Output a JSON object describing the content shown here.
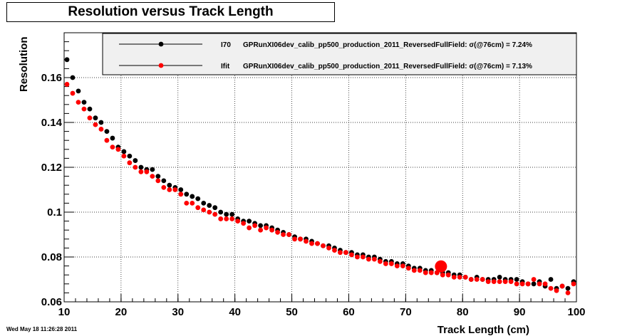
{
  "chart_data": {
    "type": "scatter",
    "title": "Resolution versus Track Length",
    "xlabel": "Track Length (cm)",
    "ylabel": "Resolution",
    "xlim": [
      10,
      100
    ],
    "ylim": [
      0.06,
      0.18
    ],
    "x_ticks": [
      "10",
      "20",
      "30",
      "40",
      "50",
      "60",
      "70",
      "80",
      "90",
      "100"
    ],
    "y_ticks": [
      "0.06",
      "0.08",
      "0.1",
      "0.12",
      "0.14",
      "0.16"
    ],
    "grid": true,
    "legend_position": "top-right",
    "timestamp": "Wed May 18 11:26:28 2011",
    "highlight_point": {
      "x": 76.2,
      "y": 0.0758,
      "color": "#ff0000"
    },
    "series": [
      {
        "name": "I70",
        "legend_text": "GPRunXI06dev_calib_pp500_production_2011_ReversedFullField: σ(@76cm) =  7.24%",
        "color": "#000000",
        "x": [
          10.5,
          11.5,
          12.5,
          13.5,
          14.5,
          15.5,
          16.5,
          17.5,
          18.5,
          19.5,
          20.5,
          21.5,
          22.5,
          23.5,
          24.5,
          25.5,
          26.5,
          27.5,
          28.5,
          29.5,
          30.5,
          31.5,
          32.5,
          33.5,
          34.5,
          35.5,
          36.5,
          37.5,
          38.5,
          39.5,
          40.5,
          41.5,
          42.5,
          43.5,
          44.5,
          45.5,
          46.5,
          47.5,
          48.5,
          49.5,
          50.5,
          51.5,
          52.5,
          53.5,
          54.5,
          55.5,
          56.5,
          57.5,
          58.5,
          59.5,
          60.5,
          61.5,
          62.5,
          63.5,
          64.5,
          65.5,
          66.5,
          67.5,
          68.5,
          69.5,
          70.5,
          71.5,
          72.5,
          73.5,
          74.5,
          75.5,
          76.5,
          77.5,
          78.5,
          79.5,
          80.5,
          81.5,
          82.5,
          83.5,
          84.5,
          85.5,
          86.5,
          87.5,
          88.5,
          89.5,
          90.5,
          91.5,
          92.5,
          93.5,
          94.5,
          95.5,
          96.5,
          97.5,
          98.5,
          99.5
        ],
        "y": [
          0.168,
          0.16,
          0.154,
          0.149,
          0.146,
          0.142,
          0.14,
          0.136,
          0.133,
          0.129,
          0.127,
          0.125,
          0.123,
          0.12,
          0.119,
          0.119,
          0.116,
          0.114,
          0.112,
          0.111,
          0.11,
          0.108,
          0.107,
          0.106,
          0.104,
          0.103,
          0.102,
          0.1,
          0.099,
          0.099,
          0.097,
          0.096,
          0.096,
          0.095,
          0.094,
          0.094,
          0.093,
          0.092,
          0.091,
          0.09,
          0.089,
          0.088,
          0.088,
          0.087,
          0.086,
          0.085,
          0.085,
          0.084,
          0.083,
          0.082,
          0.082,
          0.081,
          0.081,
          0.08,
          0.08,
          0.079,
          0.078,
          0.078,
          0.077,
          0.077,
          0.076,
          0.075,
          0.075,
          0.074,
          0.074,
          0.073,
          0.073,
          0.073,
          0.072,
          0.072,
          0.071,
          0.07,
          0.071,
          0.07,
          0.07,
          0.07,
          0.071,
          0.07,
          0.07,
          0.07,
          0.069,
          0.068,
          0.068,
          0.069,
          0.067,
          0.07,
          0.066,
          0.067,
          0.066,
          0.069
        ]
      },
      {
        "name": "Ifit",
        "legend_text": "GPRunXI06dev_calib_pp500_production_2011_ReversedFullField: σ(@76cm) =  7.13%",
        "color": "#ff0000",
        "x": [
          10.5,
          11.5,
          12.5,
          13.5,
          14.5,
          15.5,
          16.5,
          17.5,
          18.5,
          19.5,
          20.5,
          21.5,
          22.5,
          23.5,
          24.5,
          25.5,
          26.5,
          27.5,
          28.5,
          29.5,
          30.5,
          31.5,
          32.5,
          33.5,
          34.5,
          35.5,
          36.5,
          37.5,
          38.5,
          39.5,
          40.5,
          41.5,
          42.5,
          43.5,
          44.5,
          45.5,
          46.5,
          47.5,
          48.5,
          49.5,
          50.5,
          51.5,
          52.5,
          53.5,
          54.5,
          55.5,
          56.5,
          57.5,
          58.5,
          59.5,
          60.5,
          61.5,
          62.5,
          63.5,
          64.5,
          65.5,
          66.5,
          67.5,
          68.5,
          69.5,
          70.5,
          71.5,
          72.5,
          73.5,
          74.5,
          75.5,
          76.5,
          77.5,
          78.5,
          79.5,
          80.5,
          81.5,
          82.5,
          83.5,
          84.5,
          85.5,
          86.5,
          87.5,
          88.5,
          89.5,
          90.5,
          91.5,
          92.5,
          93.5,
          94.5,
          95.5,
          96.5,
          97.5,
          98.5,
          99.5
        ],
        "y": [
          0.157,
          0.153,
          0.149,
          0.146,
          0.142,
          0.139,
          0.137,
          0.132,
          0.129,
          0.128,
          0.125,
          0.122,
          0.12,
          0.118,
          0.118,
          0.116,
          0.114,
          0.111,
          0.11,
          0.11,
          0.108,
          0.104,
          0.104,
          0.102,
          0.101,
          0.1,
          0.099,
          0.097,
          0.097,
          0.097,
          0.096,
          0.095,
          0.093,
          0.094,
          0.092,
          0.093,
          0.092,
          0.091,
          0.09,
          0.09,
          0.088,
          0.088,
          0.087,
          0.086,
          0.086,
          0.085,
          0.084,
          0.083,
          0.082,
          0.082,
          0.081,
          0.08,
          0.08,
          0.079,
          0.079,
          0.078,
          0.077,
          0.077,
          0.076,
          0.076,
          0.075,
          0.074,
          0.074,
          0.073,
          0.073,
          0.073,
          0.072,
          0.072,
          0.071,
          0.071,
          0.071,
          0.07,
          0.07,
          0.07,
          0.069,
          0.069,
          0.069,
          0.069,
          0.069,
          0.068,
          0.068,
          0.068,
          0.07,
          0.068,
          0.068,
          0.066,
          0.065,
          0.067,
          0.064,
          0.068
        ]
      }
    ]
  }
}
